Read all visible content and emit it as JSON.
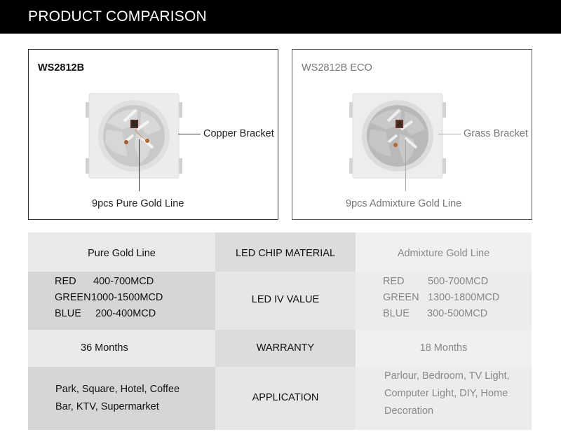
{
  "header": {
    "title": "PRODUCT COMPARISON"
  },
  "cards": {
    "left": {
      "title": "WS2812B",
      "side_label": "Copper Bracket",
      "bottom_label": "9pcs Pure Gold Line"
    },
    "right": {
      "title": "WS2812B ECO",
      "side_label": "Grass Bracket",
      "bottom_label": "9pcs Admixture Gold Line"
    }
  },
  "table": {
    "material": {
      "left": "Pure Gold Line",
      "label": "LED CHIP MATERIAL",
      "right": "Admixture Gold Line"
    },
    "iv": {
      "label": "LED IV VALUE",
      "left": [
        {
          "color": "RED",
          "value": "400-700MCD"
        },
        {
          "color": "GREEN",
          "value": "1000-1500MCD"
        },
        {
          "color": "BLUE",
          "value": "200-400MCD"
        }
      ],
      "right": [
        {
          "color": "RED",
          "value": "500-700MCD"
        },
        {
          "color": "GREEN",
          "value": "1300-1800MCD"
        },
        {
          "color": "BLUE",
          "value": "300-500MCD"
        }
      ]
    },
    "warranty": {
      "left": "36 Months",
      "label": "WARRANTY",
      "right": "18 Months"
    },
    "application": {
      "label": "APPLICATION",
      "left": [
        "Park, Square, Hotel, Coffee",
        "Bar, KTV, Supermarket"
      ],
      "right": [
        "Parlour, Bedroom, TV Light,",
        "Computer Light, DIY, Home",
        "Decoration"
      ]
    }
  }
}
